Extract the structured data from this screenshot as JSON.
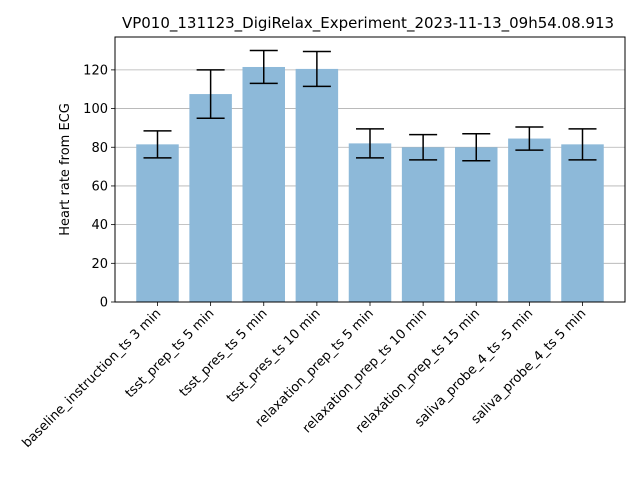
{
  "chart_data": {
    "type": "bar",
    "title": "VP010_131123_DigiRelax_Experiment_2023-11-13_09h54.08.913",
    "xlabel": "",
    "ylabel": "Heart rate from ECG",
    "ylim": [
      0,
      137
    ],
    "yticks": [
      0,
      20,
      40,
      60,
      80,
      100,
      120
    ],
    "grid": "y",
    "categories": [
      "baseline_instruction_ts 3 min",
      "tsst_prep_ts 5 min",
      "tsst_pres_ts 5 min",
      "tsst_pres_ts 10 min",
      "relaxation_prep_ts 5 min",
      "relaxation_prep_ts 10 min",
      "relaxation_prep_ts 15 min",
      "saliva_probe_4_ts -5 min",
      "saliva_probe_4_ts 5 min"
    ],
    "values": [
      81.5,
      107.5,
      121.5,
      120.5,
      82.0,
      80.0,
      80.0,
      84.5,
      81.5
    ],
    "errors": [
      7.0,
      12.5,
      8.5,
      9.0,
      7.5,
      6.5,
      7.0,
      6.0,
      8.0
    ],
    "bar_color": "#8db9d9"
  }
}
